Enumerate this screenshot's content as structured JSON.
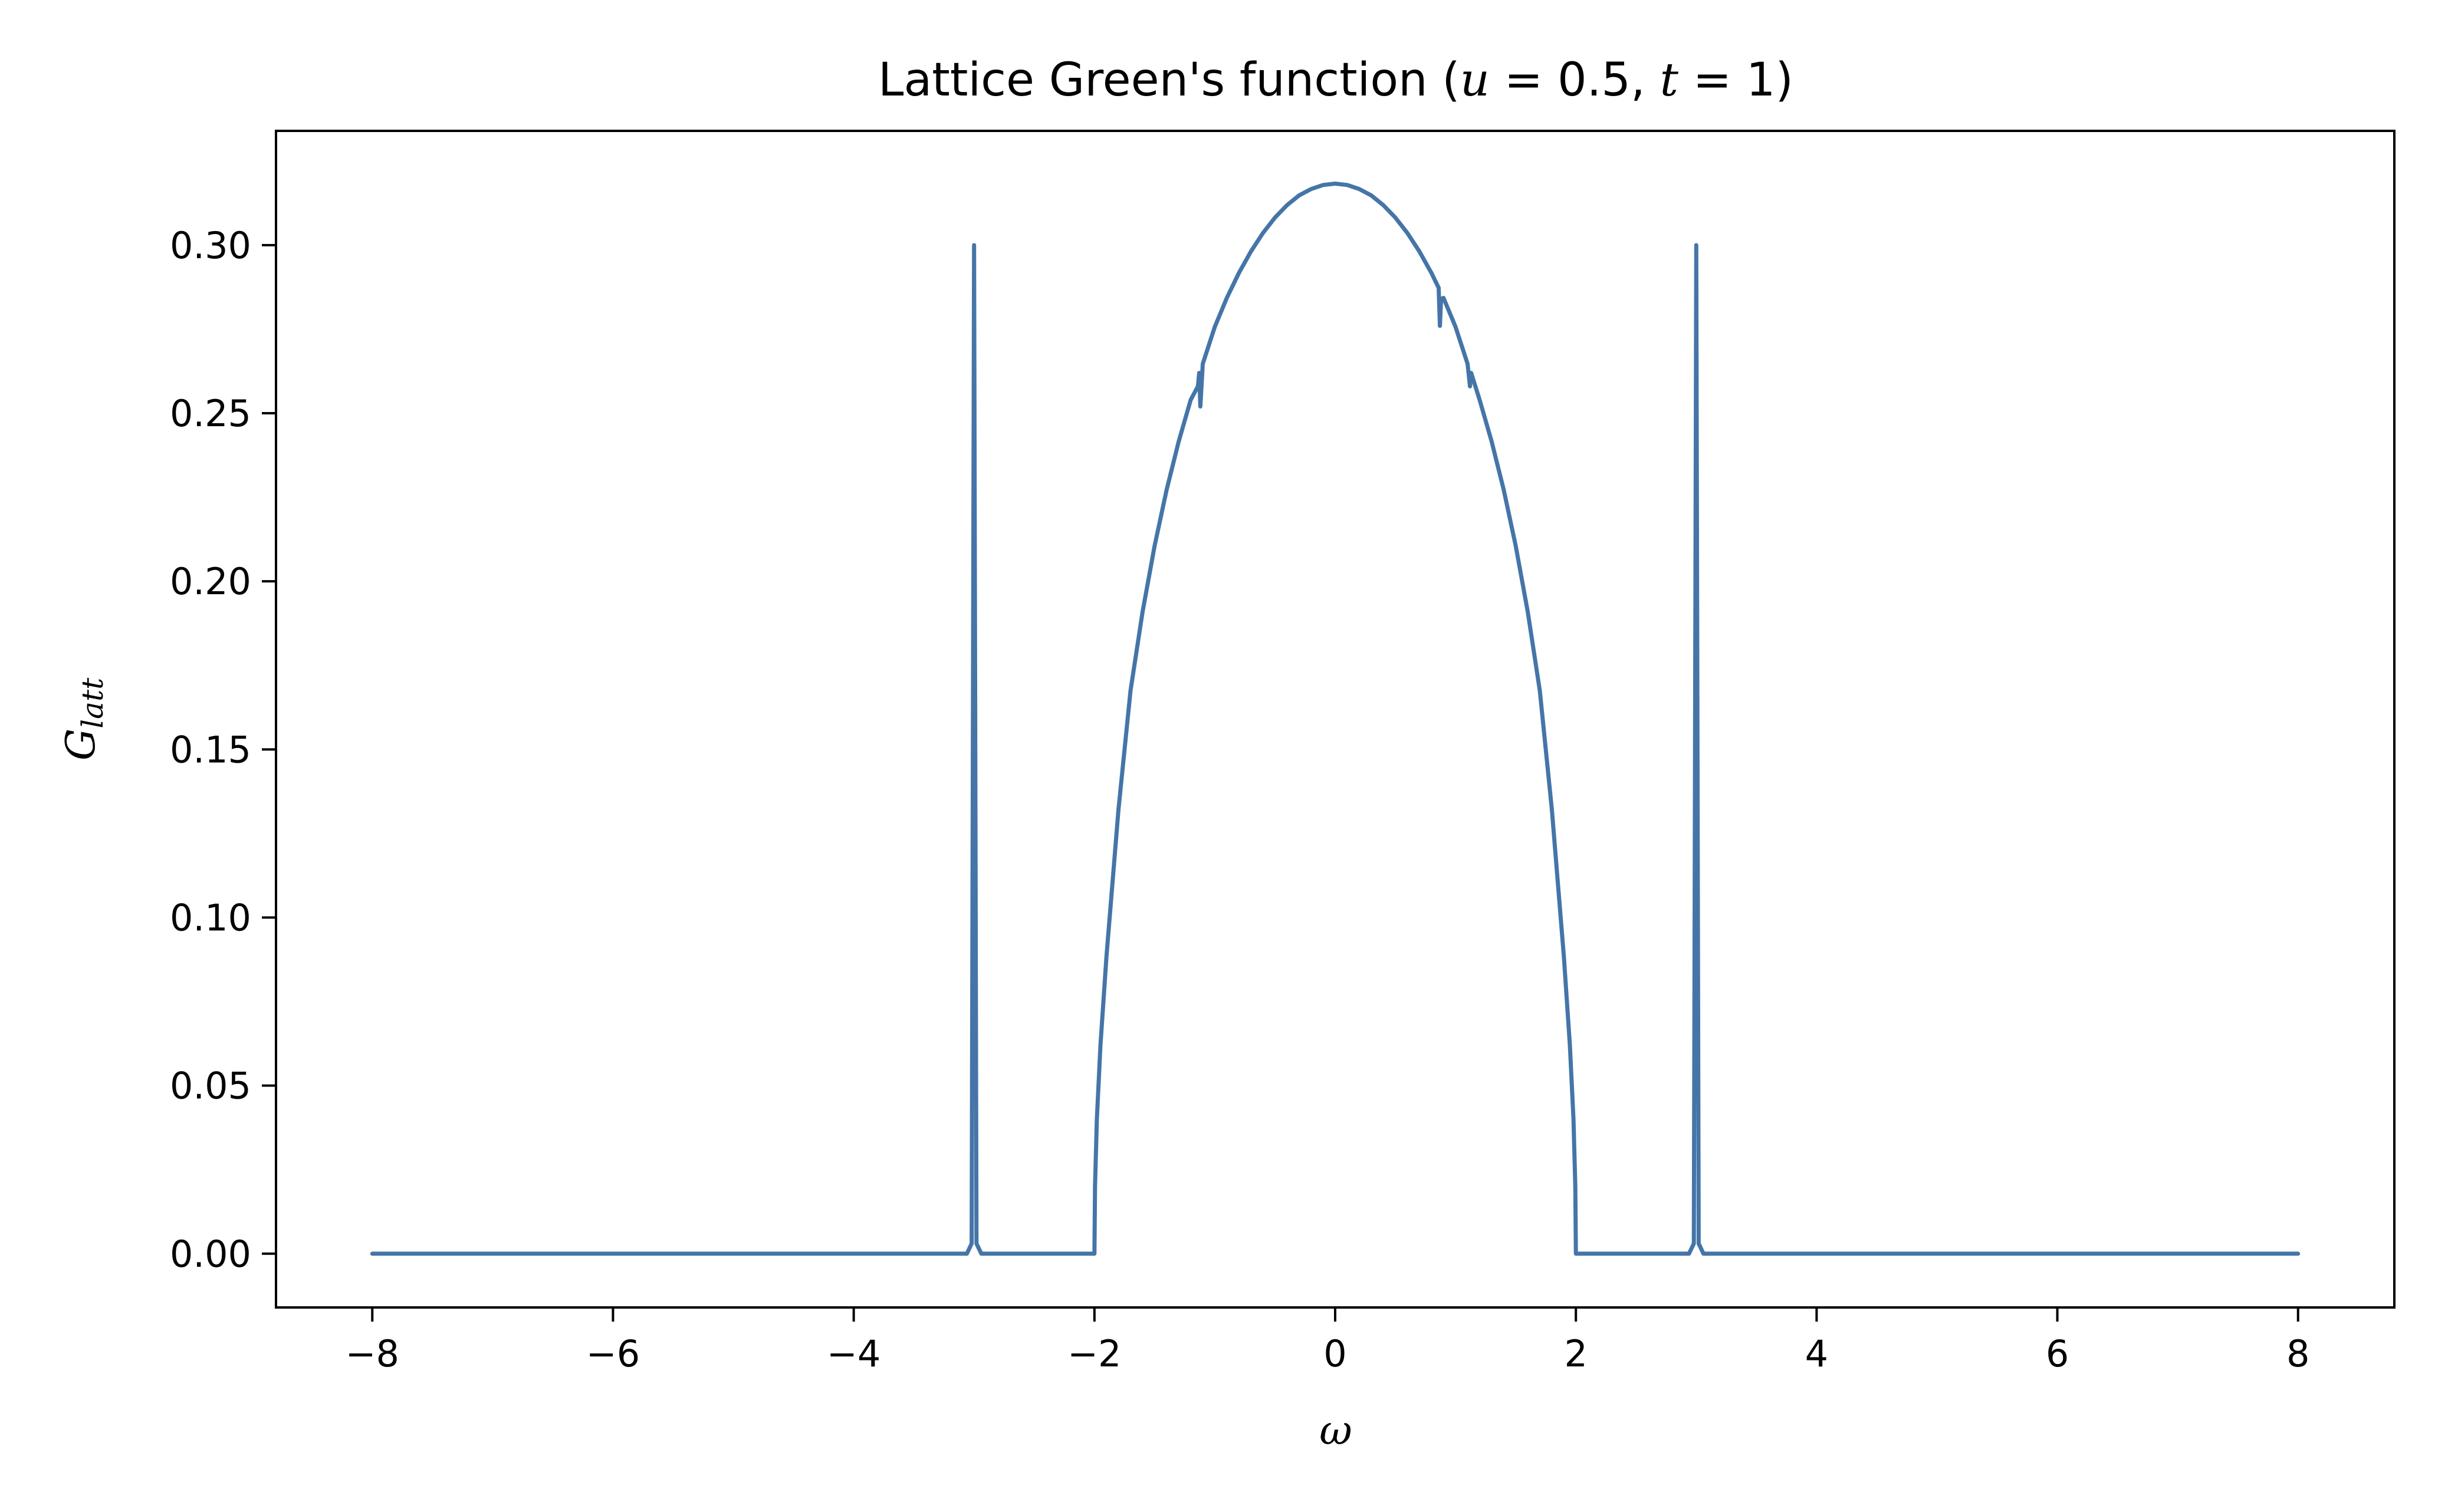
{
  "chart_data": {
    "type": "line",
    "title_parts": {
      "prefix": "Lattice Green's function (",
      "u_sym": "u",
      "u_eq": " = 0.5, ",
      "t_sym": "t",
      "t_eq": " = 1)"
    },
    "xlabel": "ω",
    "ylabel": "G",
    "ylabel_sub": "latt",
    "xlim": [
      -8.8,
      8.8
    ],
    "ylim": [
      -0.016,
      0.334
    ],
    "x_ticks": [
      -8,
      -6,
      -4,
      -2,
      0,
      2,
      4,
      6,
      8
    ],
    "x_tick_labels": [
      "−8",
      "−6",
      "−4",
      "−2",
      "0",
      "2",
      "4",
      "6",
      "8"
    ],
    "y_ticks": [
      0.0,
      0.05,
      0.1,
      0.15,
      0.2,
      0.25,
      0.3
    ],
    "y_tick_labels": [
      "0.00",
      "0.05",
      "0.10",
      "0.15",
      "0.20",
      "0.25",
      "0.30"
    ],
    "grid": false,
    "legend": "none",
    "series": [
      {
        "color": "#4575a8",
        "points": [
          [
            -8.0,
            0.0
          ],
          [
            -3.06,
            0.0
          ],
          [
            -3.02,
            0.003
          ],
          [
            -3.0,
            0.3
          ],
          [
            -2.98,
            0.003
          ],
          [
            -2.94,
            0.0
          ],
          [
            -2.0,
            0.0
          ],
          [
            -1.995,
            0.02
          ],
          [
            -1.98,
            0.04
          ],
          [
            -1.95,
            0.062
          ],
          [
            -1.9,
            0.0884
          ],
          [
            -1.8,
            0.1322
          ],
          [
            -1.7,
            0.1675
          ],
          [
            -1.6,
            0.191
          ],
          [
            -1.5,
            0.2106
          ],
          [
            -1.4,
            0.2273
          ],
          [
            -1.3,
            0.2416
          ],
          [
            -1.2,
            0.254
          ],
          [
            -1.14,
            0.258
          ],
          [
            -1.13,
            0.262
          ],
          [
            -1.12,
            0.252
          ],
          [
            -1.1,
            0.2647
          ],
          [
            -1.0,
            0.2757
          ],
          [
            -0.9,
            0.2843
          ],
          [
            -0.8,
            0.2917
          ],
          [
            -0.7,
            0.2981
          ],
          [
            -0.6,
            0.3036
          ],
          [
            -0.5,
            0.3082
          ],
          [
            -0.4,
            0.3119
          ],
          [
            -0.3,
            0.3148
          ],
          [
            -0.2,
            0.3167
          ],
          [
            -0.1,
            0.3179
          ],
          [
            0.0,
            0.3183
          ],
          [
            0.1,
            0.3179
          ],
          [
            0.2,
            0.3167
          ],
          [
            0.3,
            0.3148
          ],
          [
            0.4,
            0.3119
          ],
          [
            0.5,
            0.3082
          ],
          [
            0.6,
            0.3036
          ],
          [
            0.7,
            0.2981
          ],
          [
            0.8,
            0.2917
          ],
          [
            0.86,
            0.2873
          ],
          [
            0.87,
            0.276
          ],
          [
            0.88,
            0.284
          ],
          [
            0.9,
            0.2843
          ],
          [
            1.0,
            0.2757
          ],
          [
            1.1,
            0.2647
          ],
          [
            1.12,
            0.258
          ],
          [
            1.13,
            0.262
          ],
          [
            1.2,
            0.254
          ],
          [
            1.3,
            0.2416
          ],
          [
            1.4,
            0.2273
          ],
          [
            1.5,
            0.2106
          ],
          [
            1.6,
            0.191
          ],
          [
            1.7,
            0.1675
          ],
          [
            1.8,
            0.1322
          ],
          [
            1.9,
            0.0884
          ],
          [
            1.95,
            0.062
          ],
          [
            1.98,
            0.04
          ],
          [
            1.995,
            0.02
          ],
          [
            2.0,
            0.0
          ],
          [
            2.94,
            0.0
          ],
          [
            2.98,
            0.003
          ],
          [
            3.0,
            0.3
          ],
          [
            3.02,
            0.003
          ],
          [
            3.06,
            0.0
          ],
          [
            8.0,
            0.0
          ]
        ]
      }
    ]
  }
}
